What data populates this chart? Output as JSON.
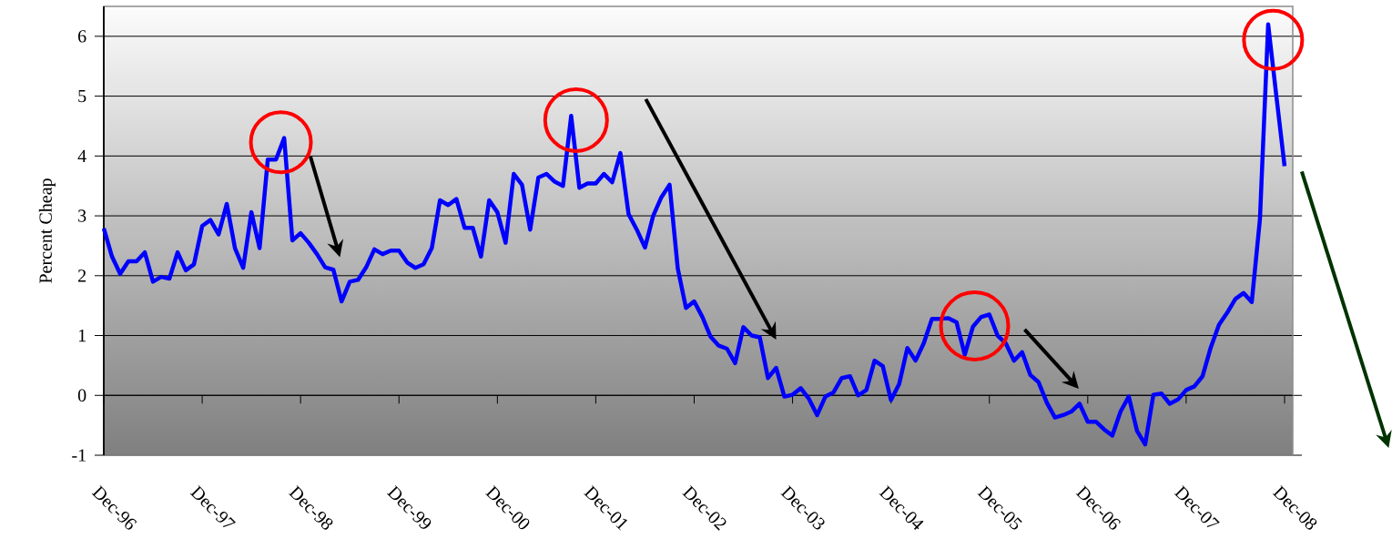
{
  "chart_data": {
    "type": "line",
    "ylabel": "Percent Cheap",
    "color": "#0000ff",
    "marker": "none",
    "line_style": "solid",
    "grid": "y",
    "x": [
      "1996-12",
      "1997-01",
      "1997-02",
      "1997-03",
      "1997-04",
      "1997-05",
      "1997-06",
      "1997-07",
      "1997-08",
      "1997-09",
      "1997-10",
      "1997-11",
      "1997-12",
      "1998-01",
      "1998-02",
      "1998-03",
      "1998-04",
      "1998-05",
      "1998-06",
      "1998-07",
      "1998-08",
      "1998-09",
      "1998-10",
      "1998-11",
      "1998-12",
      "1999-01",
      "1999-02",
      "1999-03",
      "1999-04",
      "1999-05",
      "1999-06",
      "1999-07",
      "1999-08",
      "1999-09",
      "1999-10",
      "1999-11",
      "1999-12",
      "2000-01",
      "2000-02",
      "2000-03",
      "2000-04",
      "2000-05",
      "2000-06",
      "2000-07",
      "2000-08",
      "2000-09",
      "2000-10",
      "2000-11",
      "2000-12",
      "2001-01",
      "2001-02",
      "2001-03",
      "2001-04",
      "2001-05",
      "2001-06",
      "2001-07",
      "2001-08",
      "2001-09",
      "2001-10",
      "2001-11",
      "2001-12",
      "2002-01",
      "2002-02",
      "2002-03",
      "2002-04",
      "2002-05",
      "2002-06",
      "2002-07",
      "2002-08",
      "2002-09",
      "2002-10",
      "2002-11",
      "2002-12",
      "2003-01",
      "2003-02",
      "2003-03",
      "2003-04",
      "2003-05",
      "2003-06",
      "2003-07",
      "2003-08",
      "2003-09",
      "2003-10",
      "2003-11",
      "2003-12",
      "2004-01",
      "2004-02",
      "2004-03",
      "2004-04",
      "2004-05",
      "2004-06",
      "2004-07",
      "2004-08",
      "2004-09",
      "2004-10",
      "2004-11",
      "2004-12",
      "2005-01",
      "2005-02",
      "2005-03",
      "2005-04",
      "2005-05",
      "2005-06",
      "2005-07",
      "2005-08",
      "2005-09",
      "2005-10",
      "2005-11",
      "2005-12",
      "2006-01",
      "2006-02",
      "2006-03",
      "2006-04",
      "2006-05",
      "2006-06",
      "2006-07",
      "2006-08",
      "2006-09",
      "2006-10",
      "2006-11",
      "2006-12",
      "2007-01",
      "2007-02",
      "2007-03",
      "2007-04",
      "2007-05",
      "2007-06",
      "2007-07",
      "2007-08",
      "2007-09",
      "2007-10",
      "2007-11",
      "2007-12",
      "2008-01",
      "2008-02",
      "2008-03",
      "2008-04",
      "2008-05",
      "2008-06",
      "2008-07",
      "2008-08",
      "2008-09",
      "2008-10",
      "2008-11",
      "2008-12"
    ],
    "values": [
      2.79,
      2.32,
      2.03,
      2.24,
      2.24,
      2.39,
      1.9,
      1.98,
      1.95,
      2.39,
      2.09,
      2.19,
      2.83,
      2.93,
      2.69,
      3.2,
      2.46,
      2.13,
      3.06,
      2.46,
      3.94,
      3.94,
      4.3,
      2.59,
      2.71,
      2.55,
      2.36,
      2.14,
      2.1,
      1.57,
      1.9,
      1.93,
      2.14,
      2.44,
      2.36,
      2.42,
      2.42,
      2.22,
      2.13,
      2.19,
      2.46,
      3.26,
      3.18,
      3.28,
      2.8,
      2.8,
      2.32,
      3.26,
      3.06,
      2.55,
      3.7,
      3.52,
      2.77,
      3.64,
      3.7,
      3.57,
      3.5,
      4.67,
      3.47,
      3.54,
      3.54,
      3.7,
      3.56,
      4.05,
      3.03,
      2.77,
      2.47,
      3.0,
      3.31,
      3.52,
      2.12,
      1.46,
      1.57,
      1.31,
      0.98,
      0.83,
      0.78,
      0.54,
      1.14,
      1.0,
      0.97,
      0.29,
      0.46,
      -0.02,
      0.01,
      0.12,
      -0.06,
      -0.33,
      -0.02,
      0.05,
      0.29,
      0.32,
      0.0,
      0.09,
      0.58,
      0.49,
      -0.08,
      0.19,
      0.79,
      0.58,
      0.87,
      1.28,
      1.28,
      1.29,
      1.22,
      0.68,
      1.15,
      1.31,
      1.35,
      1.0,
      0.87,
      0.58,
      0.72,
      0.34,
      0.22,
      -0.12,
      -0.37,
      -0.33,
      -0.27,
      -0.14,
      -0.44,
      -0.44,
      -0.57,
      -0.67,
      -0.27,
      -0.02,
      -0.59,
      -0.82,
      0.01,
      0.03,
      -0.14,
      -0.07,
      0.09,
      0.15,
      0.32,
      0.8,
      1.18,
      1.38,
      1.61,
      1.71,
      1.56,
      2.95,
      6.2,
      5.0,
      3.83
    ],
    "xlim": [
      "1996-12",
      "2009-01"
    ],
    "xticks": [
      {
        "value": "1996-12",
        "label": "Dec-96"
      },
      {
        "value": "1997-12",
        "label": "Dec-97"
      },
      {
        "value": "1998-12",
        "label": "Dec-98"
      },
      {
        "value": "1999-12",
        "label": "Dec-99"
      },
      {
        "value": "2000-12",
        "label": "Dec-00"
      },
      {
        "value": "2001-12",
        "label": "Dec-01"
      },
      {
        "value": "2002-12",
        "label": "Dec-02"
      },
      {
        "value": "2003-12",
        "label": "Dec-03"
      },
      {
        "value": "2004-12",
        "label": "Dec-04"
      },
      {
        "value": "2005-12",
        "label": "Dec-05"
      },
      {
        "value": "2006-12",
        "label": "Dec-06"
      },
      {
        "value": "2007-12",
        "label": "Dec-07"
      },
      {
        "value": "2008-12",
        "label": "Dec-08"
      }
    ],
    "ylim": [
      -1,
      6.5
    ],
    "yticks": [
      -1,
      0,
      1,
      2,
      3,
      4,
      5,
      6
    ]
  }
}
